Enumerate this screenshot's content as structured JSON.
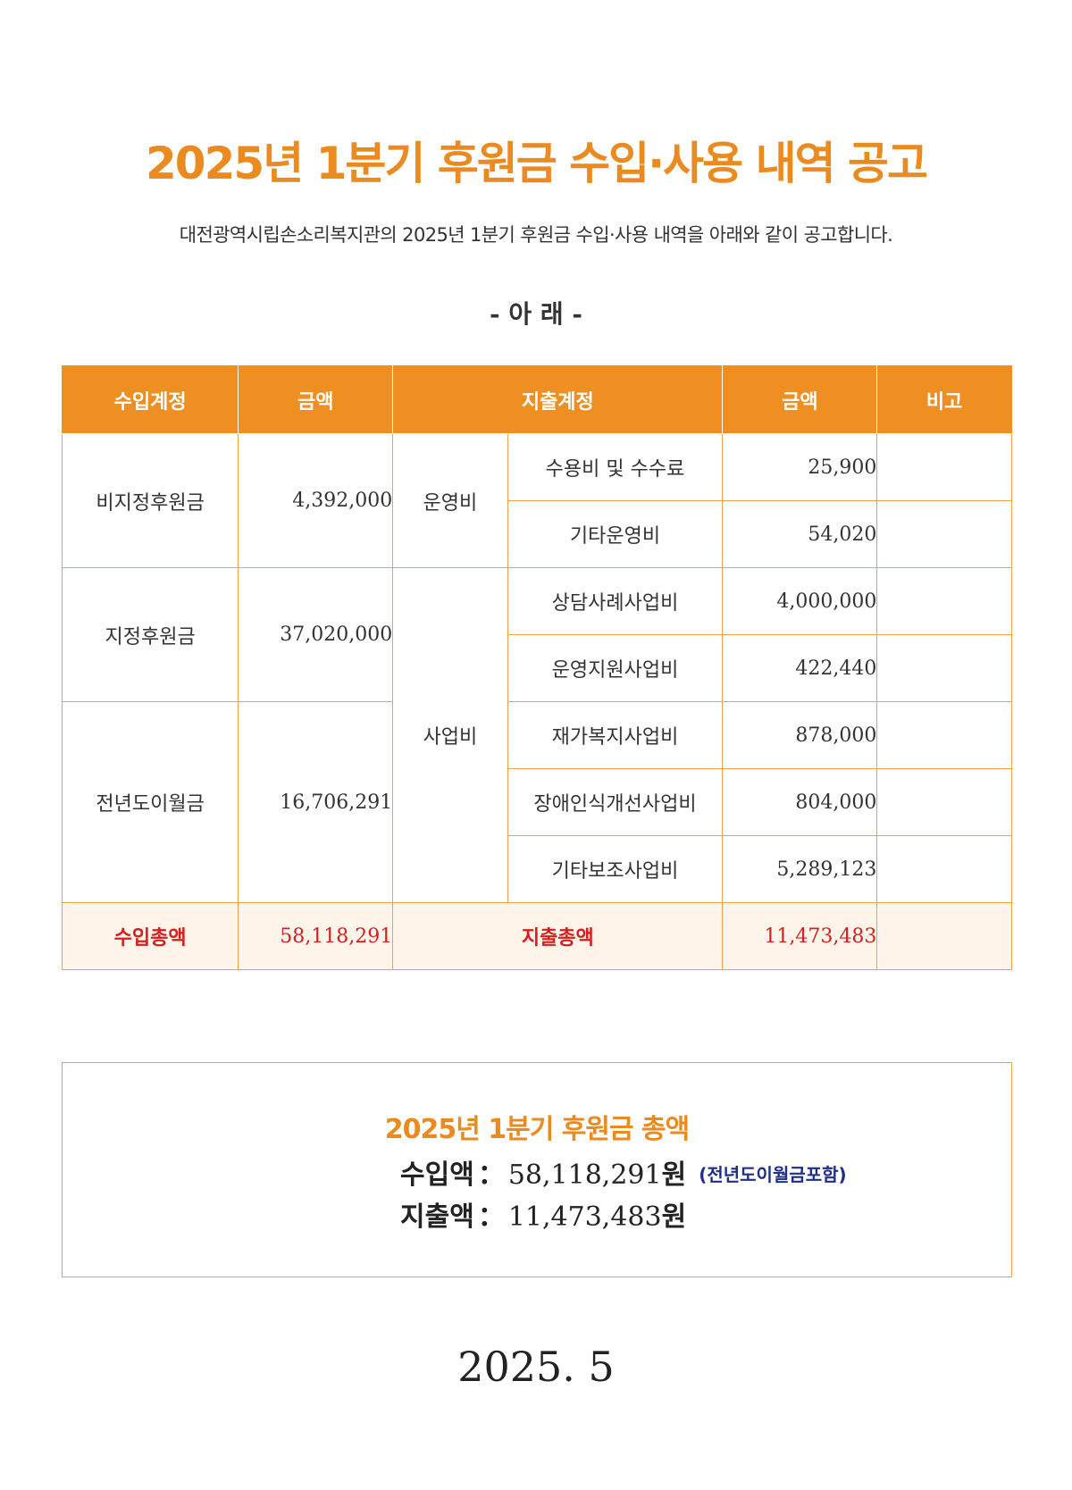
{
  "title": "2025년 1분기 후원금 수입·사용 내역 공고",
  "subtitle": "대전광역시립손소리복지관의 2025년 1분기 후원금 수입·사용 내역을 아래와 같이 공고합니다.",
  "below_label": "- 아 래 -",
  "table": {
    "headers": {
      "income_account": "수입계정",
      "income_amount": "금액",
      "expense_account": "지출계정",
      "expense_amount": "금액",
      "remarks": "비고"
    },
    "income": [
      {
        "label": "비지정후원금",
        "amount": "4,392,000"
      },
      {
        "label": "지정후원금",
        "amount": "37,020,000"
      },
      {
        "label": "전년도이월금",
        "amount": "16,706,291"
      }
    ],
    "expense_groups": [
      {
        "group": "운영비",
        "items": [
          {
            "label": "수용비 및 수수료",
            "amount": "25,900"
          },
          {
            "label": "기타운영비",
            "amount": "54,020"
          }
        ]
      },
      {
        "group": "사업비",
        "items": [
          {
            "label": "상담사례사업비",
            "amount": "4,000,000"
          },
          {
            "label": "운영지원사업비",
            "amount": "422,440"
          },
          {
            "label": "재가복지사업비",
            "amount": "878,000"
          },
          {
            "label": "장애인식개선사업비",
            "amount": "804,000"
          },
          {
            "label": "기타보조사업비",
            "amount": "5,289,123"
          }
        ]
      }
    ],
    "totals": {
      "income_label": "수입총액",
      "income_amount": "58,118,291",
      "expense_label": "지출총액",
      "expense_amount": "11,473,483"
    }
  },
  "summary": {
    "title": "2025년 1분기 후원금 총액",
    "income_label": "수입액",
    "income_value": "58,118,291",
    "income_unit": "원",
    "income_note": "(전년도이월금포함)",
    "expense_label": "지출액",
    "expense_value": "11,473,483",
    "expense_unit": "원",
    "colon": "："
  },
  "date": "2025. 5",
  "colors": {
    "accent": "#ef8f21",
    "title": "#ea8a1f",
    "total_text": "#d81d1d",
    "total_bg": "#fff5ea",
    "note": "#1e2e8a"
  }
}
